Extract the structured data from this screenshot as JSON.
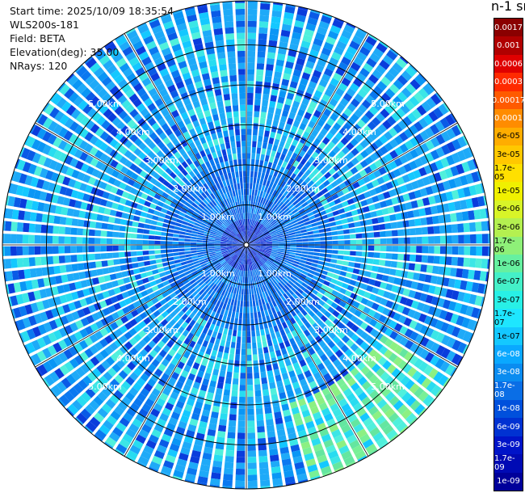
{
  "info": {
    "start_time": "Start time: 2025/10/09 18:35:54",
    "instrument": "WLS200s-181",
    "field": "Field: BETA",
    "elevation": "Elevation(deg): 35.00",
    "nrays": "NRays: 120"
  },
  "colorbar": {
    "unit_title": "n-1 sr-",
    "labels": [
      "0.0017",
      "0.001",
      "0.0006",
      "0.0003",
      "0.00017",
      "0.0001",
      "6e-05",
      "3e-05",
      "1.7e-05",
      "1e-05",
      "6e-06",
      "3e-06",
      "1.7e-06",
      "1e-06",
      "6e-07",
      "3e-07",
      "1.7e-07",
      "1e-07",
      "6e-08",
      "3e-08",
      "1.7e-08",
      "1e-08",
      "6e-09",
      "3e-09",
      "1.7e-09",
      "1e-09"
    ],
    "colors": [
      "#8a0000",
      "#b00000",
      "#e00000",
      "#ff2a00",
      "#ff5a00",
      "#ff8c00",
      "#ffad00",
      "#ffc800",
      "#ffe000",
      "#f0f000",
      "#d8f428",
      "#b4f050",
      "#8ef078",
      "#66f0a0",
      "#44f0c8",
      "#28f0e6",
      "#1ee6ff",
      "#14c8ff",
      "#0aa8ff",
      "#0a8cf0",
      "#0a6ee6",
      "#0050dc",
      "#0032d2",
      "#0014c8",
      "#000ab4",
      "#00009a"
    ]
  },
  "range_rings": {
    "labels": [
      "1.00km",
      "2.00km",
      "3.00km",
      "4.00km",
      "5.00km"
    ]
  },
  "chart_data": {
    "type": "heatmap",
    "projection": "polar PPI scan",
    "field": "BETA",
    "elevation_deg": 35.0,
    "n_rays": 120,
    "range_rings_km": [
      1,
      2,
      3,
      4,
      5
    ],
    "max_range_km": 6.1,
    "colorscale": "jet, logarithmic",
    "value_range": [
      1e-09,
      0.0017
    ],
    "dominant_values": {
      "inner_region_0_to_2km": "1e-09 to 1e-08",
      "outer_region_2_to_6km": "1e-08 to 6e-08",
      "azimuth_120_to_160_deg_4_to_6km": "1e-07 to 6e-07"
    }
  }
}
